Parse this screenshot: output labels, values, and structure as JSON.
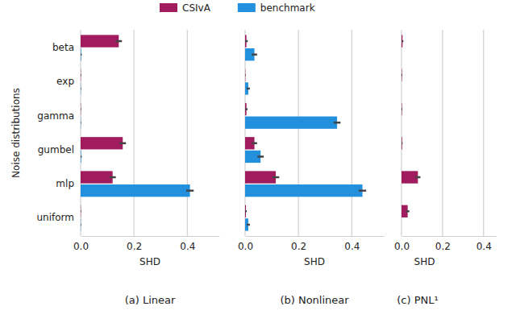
{
  "chart_data": {
    "type": "bar",
    "orientation": "horizontal",
    "grid": true,
    "legend": "top",
    "y_label": "Noise distributions",
    "categories": [
      "beta",
      "exp",
      "gamma",
      "gumbel",
      "mlp",
      "uniform"
    ],
    "series": [
      {
        "name": "CSIvA",
        "color": "#a01c5e"
      },
      {
        "name": "benchmark",
        "color": "#2390de"
      }
    ],
    "panels": [
      {
        "title": "(a) Linear",
        "x_label": "SHD",
        "xlim": [
          0,
          0.52
        ],
        "xticks": [
          {
            "value": 0,
            "label": "0.0"
          },
          {
            "value": 0.2,
            "label": "0.2"
          },
          {
            "value": 0.4,
            "label": "0.4"
          }
        ],
        "series": [
          {
            "values": [
              0.143,
              0.001,
              0.001,
              0.158,
              0.12,
              0.001
            ],
            "errors": [
              0.012,
              0.001,
              0.001,
              0.012,
              0.012,
              0.001
            ]
          },
          {
            "values": [
              0.002,
              0.001,
              0.001,
              0.002,
              0.41,
              0.001
            ],
            "errors": [
              0.002,
              0.001,
              0.001,
              0.002,
              0.014,
              0.001
            ]
          }
        ]
      },
      {
        "title": "(b) Nonlinear",
        "x_label": "SHD",
        "xlim": [
          0,
          0.52
        ],
        "xticks": [
          {
            "value": 0,
            "label": "0.0"
          },
          {
            "value": 0.2,
            "label": "0.2"
          },
          {
            "value": 0.4,
            "label": "0.4"
          }
        ],
        "series": [
          {
            "values": [
              0.005,
              0.001,
              0.005,
              0.035,
              0.115,
              0.003
            ],
            "errors": [
              0.005,
              0.001,
              0.004,
              0.01,
              0.013,
              0.003
            ]
          },
          {
            "values": [
              0.035,
              0.012,
              0.345,
              0.058,
              0.44,
              0.012
            ],
            "errors": [
              0.01,
              0.006,
              0.013,
              0.012,
              0.014,
              0.006
            ]
          }
        ]
      },
      {
        "title": "(c) PNL¹",
        "x_label": "SHD",
        "xlim": [
          0,
          0.46
        ],
        "xticks": [
          {
            "value": 0,
            "label": "0.0"
          },
          {
            "value": 0.2,
            "label": "0.2"
          },
          {
            "value": 0.4,
            "label": "0.4"
          }
        ],
        "series": [
          {
            "values": [
              0.005,
              0.002,
              0.002,
              0.003,
              0.08,
              0.03
            ],
            "errors": [
              0.004,
              0.002,
              0.002,
              0.002,
              0.012,
              0.008
            ]
          },
          {
            "values": [
              null,
              null,
              null,
              null,
              null,
              null
            ],
            "errors": [
              null,
              null,
              null,
              null,
              null,
              null
            ]
          }
        ]
      }
    ]
  }
}
